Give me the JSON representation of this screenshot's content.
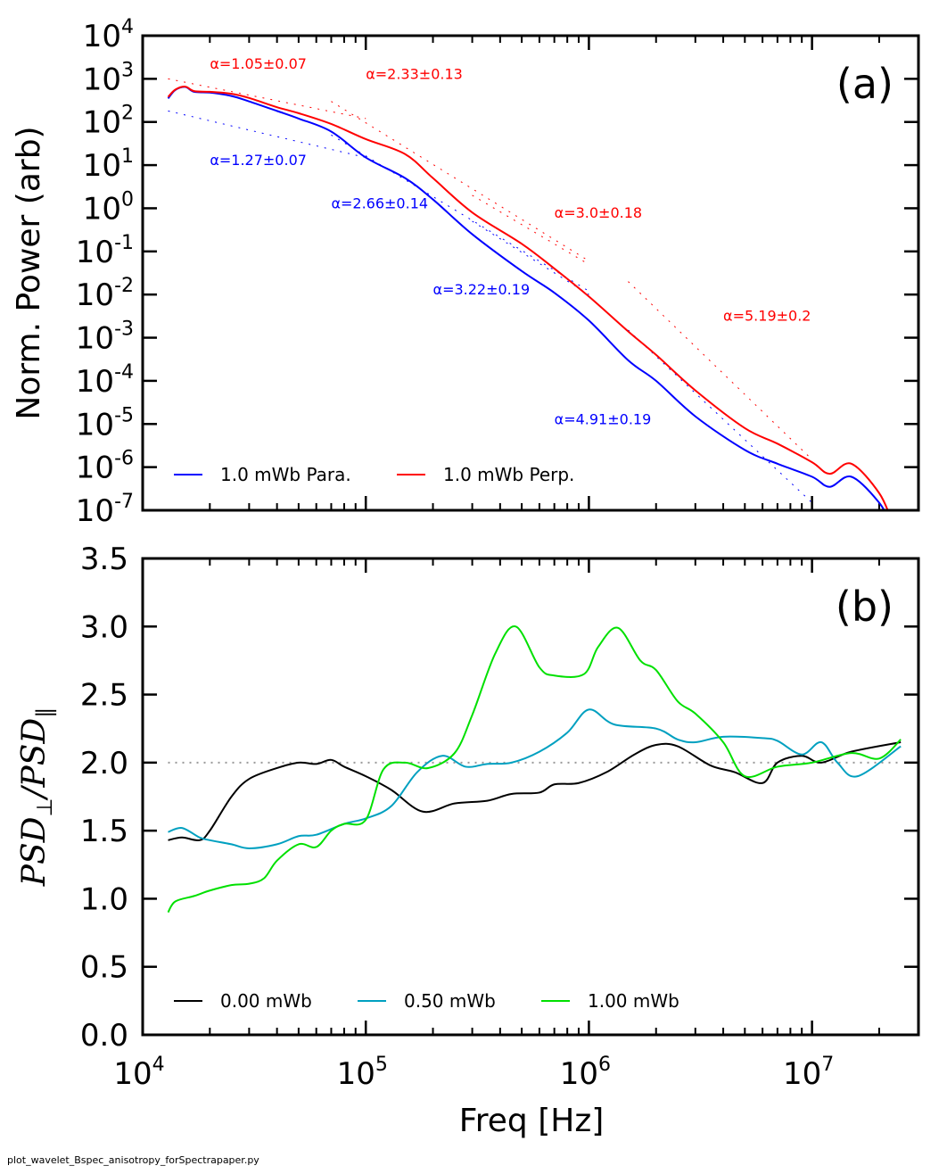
{
  "footer": "plot_wavelet_Bspec_anisotropy_forSpectrapaper.py",
  "chart_data": [
    {
      "panel": "(a)",
      "type": "line",
      "xlabel": "",
      "ylabel": "Norm. Power (arb)",
      "x_scale": "log",
      "y_scale": "log",
      "xlim": [
        10000,
        30000000
      ],
      "ylim": [
        1e-07,
        10000
      ],
      "x_ticks": [
        10000,
        100000,
        1000000,
        10000000
      ],
      "y_ticks": [
        {
          "value": 10000,
          "base": "10",
          "exp": "4"
        },
        {
          "value": 1000,
          "base": "10",
          "exp": "3"
        },
        {
          "value": 100,
          "base": "10",
          "exp": "2"
        },
        {
          "value": 10,
          "base": "10",
          "exp": "1"
        },
        {
          "value": 1,
          "base": "10",
          "exp": "0"
        },
        {
          "value": 0.1,
          "base": "10",
          "exp": "-1"
        },
        {
          "value": 0.01,
          "base": "10",
          "exp": "-2"
        },
        {
          "value": 0.001,
          "base": "10",
          "exp": "-3"
        },
        {
          "value": 0.0001,
          "base": "10",
          "exp": "-4"
        },
        {
          "value": 1e-05,
          "base": "10",
          "exp": "-5"
        },
        {
          "value": 1e-06,
          "base": "10",
          "exp": "-6"
        },
        {
          "value": 1e-07,
          "base": "10",
          "exp": "-7"
        }
      ],
      "grid": false,
      "legend_position": "bottom-left",
      "series": [
        {
          "name": "1.0 mWb Para.",
          "color": "#0000ff",
          "x": [
            13000,
            14000,
            15500,
            17000,
            20000,
            25000,
            30000,
            40000,
            50000,
            70000,
            100000,
            150000,
            200000,
            300000,
            500000,
            700000,
            1000000,
            1500000,
            2000000,
            3000000,
            5000000,
            7000000,
            10000000,
            12000000,
            15000000,
            20000000,
            23000000
          ],
          "y": [
            350,
            550,
            650,
            500,
            480,
            400,
            300,
            180,
            120,
            60,
            15,
            5,
            1.6,
            0.25,
            0.035,
            0.011,
            0.0025,
            0.0003,
            0.0001,
            1.5e-05,
            2.5e-06,
            1.2e-06,
            6e-07,
            3.5e-07,
            6e-07,
            1.5e-07,
            4e-08
          ]
        },
        {
          "name": "1.0 mWb Perp.",
          "color": "#ff0000",
          "x": [
            13000,
            14000,
            15500,
            17000,
            20000,
            25000,
            30000,
            40000,
            50000,
            70000,
            100000,
            150000,
            200000,
            300000,
            500000,
            700000,
            1000000,
            1500000,
            2000000,
            3000000,
            5000000,
            7000000,
            10000000,
            12000000,
            15000000,
            20000000,
            23000000
          ],
          "y": [
            380,
            560,
            660,
            520,
            500,
            450,
            360,
            220,
            160,
            90,
            40,
            18,
            5,
            0.8,
            0.15,
            0.04,
            0.009,
            0.0014,
            0.0004,
            6e-05,
            8e-06,
            3.5e-06,
            1.3e-06,
            7e-07,
            1.2e-06,
            2.5e-07,
            5e-08
          ]
        }
      ],
      "fits": [
        {
          "label": "α=1.05±0.07",
          "color": "#ff0000",
          "x": [
            13000,
            100000
          ],
          "y": [
            1000,
            120
          ]
        },
        {
          "label": "α=2.33±0.13",
          "color": "#ff0000",
          "x": [
            70000,
            1000000
          ],
          "y": [
            300,
            0.06
          ]
        },
        {
          "label": "α=3.0±0.18",
          "color": "#ff0000",
          "x": [
            300000,
            1000000
          ],
          "y": [
            2,
            0.05
          ]
        },
        {
          "label": "α=5.19±0.2",
          "color": "#ff0000",
          "x": [
            1500000,
            10000000
          ],
          "y": [
            0.02,
            1.5e-06
          ]
        },
        {
          "label": "α=1.27±0.07",
          "color": "#0000ff",
          "x": [
            13000,
            100000
          ],
          "y": [
            180,
            15
          ]
        },
        {
          "label": "α=2.66±0.14",
          "color": "#0000ff",
          "x": [
            70000,
            1000000
          ],
          "y": [
            50,
            0.012
          ]
        },
        {
          "label": "α=3.22±0.19",
          "color": "#0000ff",
          "x": [
            300000,
            1000000
          ],
          "y": [
            0.5,
            0.01
          ]
        },
        {
          "label": "α=4.91±0.19",
          "color": "#0000ff",
          "x": [
            1500000,
            10000000
          ],
          "y": [
            0.0015,
            1.5e-07
          ]
        }
      ],
      "annotations": [
        {
          "text": "α=1.05±0.07",
          "color": "#ff0000",
          "x": 20000,
          "y": 1700
        },
        {
          "text": "α=2.33±0.13",
          "color": "#ff0000",
          "x": 100000,
          "y": 1000
        },
        {
          "text": "α=3.0±0.18",
          "color": "#ff0000",
          "x": 700000,
          "y": 0.6
        },
        {
          "text": "α=5.19±0.2",
          "color": "#ff0000",
          "x": 4000000,
          "y": 0.0025
        },
        {
          "text": "α=1.27±0.07",
          "color": "#0000ff",
          "x": 20000,
          "y": 10
        },
        {
          "text": "α=2.66±0.14",
          "color": "#0000ff",
          "x": 70000,
          "y": 1
        },
        {
          "text": "α=3.22±0.19",
          "color": "#0000ff",
          "x": 200000,
          "y": 0.01
        },
        {
          "text": "α=4.91±0.19",
          "color": "#0000ff",
          "x": 700000,
          "y": 1e-05
        }
      ]
    },
    {
      "panel": "(b)",
      "type": "line",
      "xlabel": "Freq [Hz]",
      "ylabel": {
        "main": "PSD",
        "sub1": "⊥",
        "slash": "/",
        "main2": "PSD",
        "sub2": "∥"
      },
      "x_scale": "log",
      "y_scale": "linear",
      "xlim": [
        10000,
        30000000
      ],
      "ylim": [
        0,
        3.5
      ],
      "x_ticks": [
        {
          "value": 10000,
          "base": "10",
          "exp": "4"
        },
        {
          "value": 100000,
          "base": "10",
          "exp": "5"
        },
        {
          "value": 1000000,
          "base": "10",
          "exp": "6"
        },
        {
          "value": 10000000,
          "base": "10",
          "exp": "7"
        }
      ],
      "y_ticks": [
        "0.0",
        "0.5",
        "1.0",
        "1.5",
        "2.0",
        "2.5",
        "3.0",
        "3.5"
      ],
      "reference_line": {
        "y": 2.0,
        "style": "dotted",
        "color": "#999999"
      },
      "grid": false,
      "legend_position": "bottom-left",
      "series": [
        {
          "name": "0.00 mWb",
          "color": "#000000",
          "x": [
            13000,
            15000,
            18000,
            20000,
            25000,
            30000,
            40000,
            50000,
            60000,
            70000,
            80000,
            100000,
            130000,
            180000,
            250000,
            350000,
            450000,
            600000,
            700000,
            900000,
            1200000,
            1600000,
            2000000,
            2500000,
            3500000,
            4500000,
            6000000,
            7000000,
            9000000,
            11000000,
            15000000,
            25000000
          ],
          "y": [
            1.43,
            1.45,
            1.43,
            1.5,
            1.75,
            1.88,
            1.96,
            2.0,
            1.99,
            2.02,
            1.97,
            1.9,
            1.8,
            1.64,
            1.7,
            1.72,
            1.77,
            1.78,
            1.84,
            1.85,
            1.93,
            2.06,
            2.13,
            2.12,
            1.98,
            1.93,
            1.85,
            2.0,
            2.05,
            2.0,
            2.08,
            2.15
          ]
        },
        {
          "name": "0.50 mWb",
          "color": "#00a0c0",
          "x": [
            13000,
            15000,
            18000,
            20000,
            25000,
            30000,
            40000,
            50000,
            60000,
            80000,
            100000,
            130000,
            170000,
            220000,
            280000,
            350000,
            450000,
            600000,
            800000,
            1000000,
            1300000,
            2000000,
            2500000,
            3000000,
            4000000,
            6000000,
            7000000,
            9000000,
            11000000,
            13000000,
            16000000,
            25000000
          ],
          "y": [
            1.49,
            1.52,
            1.45,
            1.43,
            1.4,
            1.37,
            1.4,
            1.46,
            1.47,
            1.55,
            1.59,
            1.68,
            1.93,
            2.05,
            1.97,
            1.99,
            2.0,
            2.08,
            2.22,
            2.39,
            2.28,
            2.25,
            2.17,
            2.15,
            2.19,
            2.18,
            2.16,
            2.06,
            2.15,
            2.0,
            1.9,
            2.12
          ]
        },
        {
          "name": "1.00 mWb",
          "color": "#00e000",
          "x": [
            13000,
            14000,
            17000,
            20000,
            25000,
            30000,
            35000,
            40000,
            50000,
            60000,
            70000,
            80000,
            100000,
            120000,
            150000,
            190000,
            250000,
            300000,
            380000,
            470000,
            600000,
            700000,
            950000,
            1100000,
            1350000,
            1700000,
            2000000,
            2500000,
            3000000,
            4000000,
            5000000,
            7000000,
            10000000,
            15000000,
            20000000,
            25000000
          ],
          "y": [
            0.9,
            0.98,
            1.02,
            1.06,
            1.1,
            1.11,
            1.15,
            1.28,
            1.4,
            1.38,
            1.5,
            1.55,
            1.58,
            1.95,
            2.0,
            1.96,
            2.07,
            2.35,
            2.8,
            3.0,
            2.7,
            2.64,
            2.65,
            2.85,
            2.99,
            2.75,
            2.68,
            2.45,
            2.36,
            2.15,
            1.9,
            1.97,
            2.0,
            2.07,
            2.03,
            2.17
          ]
        }
      ]
    }
  ]
}
